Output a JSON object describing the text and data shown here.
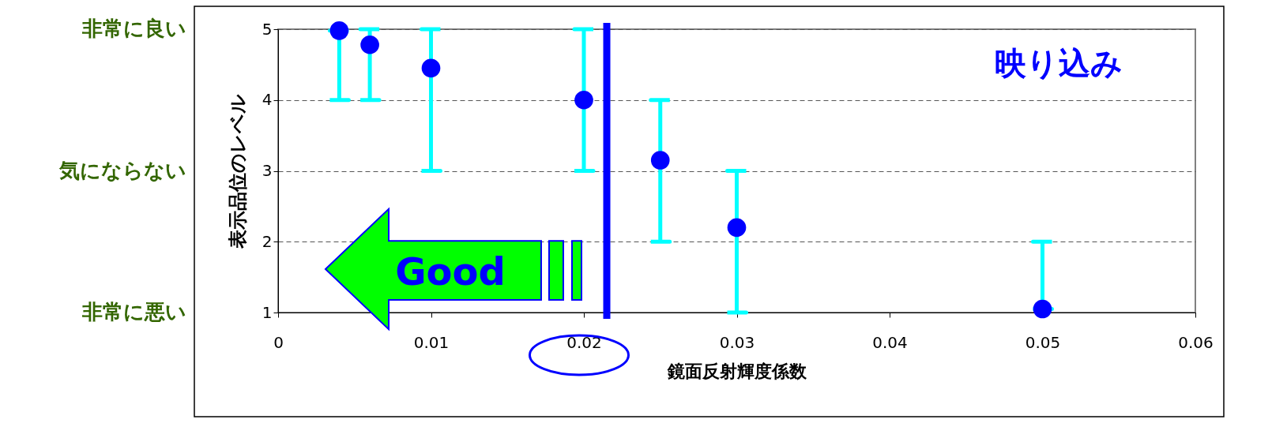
{
  "chart_data": {
    "type": "scatter",
    "xlabel": "鏡面反射輝度係数",
    "ylabel": "表示品位のレベル",
    "x": [
      0.004,
      0.006,
      0.01,
      0.02,
      0.025,
      0.03,
      0.05
    ],
    "series": [
      {
        "color": "#0000ff",
        "values": [
          4.98,
          4.78,
          4.45,
          4.0,
          3.15,
          2.2,
          1.05
        ],
        "errors": [
          [
            4,
            4.98
          ],
          [
            4,
            5
          ],
          [
            3,
            5
          ],
          [
            3,
            5
          ],
          [
            2,
            4
          ],
          [
            1,
            3
          ],
          [
            1.05,
            2
          ]
        ]
      }
    ],
    "xlim": [
      0,
      0.06
    ],
    "xticks": [
      0,
      0.01,
      0.02,
      0.03,
      0.04,
      0.05,
      0.06
    ],
    "ylim": [
      1,
      5
    ],
    "yticks": [
      1,
      2,
      3,
      4,
      5
    ],
    "ref_lines": [
      {
        "axis": "x",
        "value": 0.0215,
        "color": "#0000ff"
      }
    ],
    "annotations": [
      "映り込み",
      "Good",
      "非常に良い",
      "気にならない",
      "非常に悪い"
    ],
    "grid": "y",
    "marker": "circle"
  }
}
